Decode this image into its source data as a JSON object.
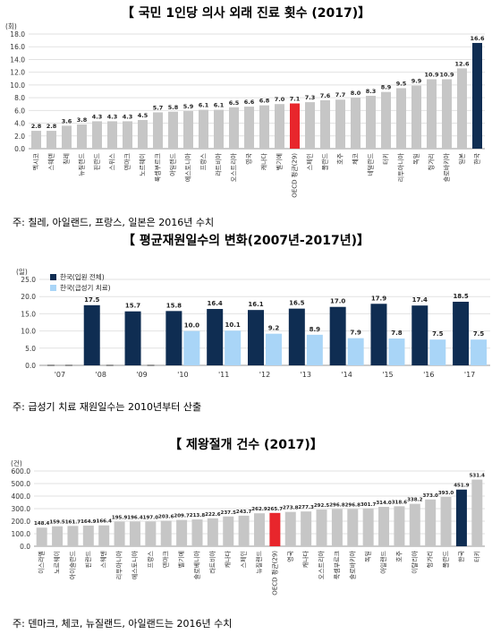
{
  "chart_data": [
    {
      "type": "bar",
      "title": "【 국민 1인당 의사 외래 진료 횟수 (2017)】",
      "ylabel": "(회)",
      "ylim": [
        0,
        18
      ],
      "yticks": [
        "0.0",
        "2.0",
        "4.0",
        "6.0",
        "8.0",
        "10.0",
        "12.0",
        "14.0",
        "16.0",
        "18.0"
      ],
      "categories": [
        "멕시코",
        "스웨덴",
        "칠레",
        "뉴질랜드",
        "핀란드",
        "스위스",
        "덴마크",
        "노르웨이",
        "룩셈부르크",
        "아일랜드",
        "에스토니아",
        "프랑스",
        "라트비아",
        "오스트리아",
        "영국",
        "캐나다",
        "벨기에",
        "OECD 평균(29)",
        "스페인",
        "폴란드",
        "호주",
        "체코",
        "네덜란드",
        "터키",
        "리투아니아",
        "독일",
        "헝가리",
        "슬로바키아",
        "일본",
        "한국"
      ],
      "values": [
        2.8,
        2.8,
        3.6,
        3.8,
        4.3,
        4.3,
        4.3,
        4.5,
        5.7,
        5.8,
        5.9,
        6.1,
        6.1,
        6.5,
        6.6,
        6.8,
        7.0,
        7.1,
        7.3,
        7.6,
        7.7,
        8.0,
        8.3,
        8.9,
        9.5,
        9.9,
        10.9,
        10.9,
        12.6,
        16.6
      ],
      "value_labels": [
        "2.8",
        "2.8",
        "3.6",
        "3.8",
        "4.3",
        "4.3",
        "4.3",
        "4.5",
        "5.7",
        "5.8",
        "5.9",
        "6.1",
        "6.1",
        "6.5",
        "6.6",
        "6.8",
        "7.0",
        "7.1",
        "7.3",
        "7.6",
        "7.7",
        "8.0",
        "8.3",
        "8.9",
        "9.5",
        "9.9",
        "10.9",
        "10.9",
        "12.6",
        "16.6"
      ],
      "highlight": {
        "OECD 평균(29)": "#e8262c",
        "한국": "#0f2d52"
      },
      "bar_color": "#c6c6c6",
      "note": "주: 칠레, 아일랜드, 프랑스, 일본은 2016년 수치"
    },
    {
      "type": "bar",
      "title": "【 평균재원일수의 변화(2007년-2017년)】",
      "ylabel": "(일)",
      "ylim": [
        0,
        25
      ],
      "yticks": [
        "0.0",
        "5.0",
        "10.0",
        "15.0",
        "20.0",
        "25.0"
      ],
      "categories": [
        "'07",
        "'08",
        "'09",
        "'10",
        "'11",
        "'12",
        "'13",
        "'14",
        "'15",
        "'16",
        "'17"
      ],
      "series": [
        {
          "name": "한국(입원 전체)",
          "color": "#0f2d52",
          "values": [
            null,
            17.5,
            15.7,
            15.8,
            16.4,
            16.1,
            16.5,
            17.0,
            17.9,
            17.4,
            18.5
          ],
          "labels": [
            "",
            "17.5",
            "15.7",
            "15.8",
            "16.4",
            "16.1",
            "16.5",
            "17.0",
            "17.9",
            "17.4",
            "18.5"
          ]
        },
        {
          "name": "한국(급성기 치료)",
          "color": "#a9d5f7",
          "values": [
            null,
            null,
            null,
            10.0,
            10.1,
            9.2,
            8.9,
            7.9,
            7.8,
            7.5,
            7.5
          ],
          "labels": [
            "",
            "",
            "",
            "10.0",
            "10.1",
            "9.2",
            "8.9",
            "7.9",
            "7.8",
            "7.5",
            "7.5"
          ]
        }
      ],
      "legend": "top-left",
      "note": "주: 급성기 치료 재원일수는 2010년부터 산출"
    },
    {
      "type": "bar",
      "title": "【 제왕절개 건수 (2017)】",
      "ylabel": "(건)",
      "ylim": [
        0,
        600
      ],
      "yticks": [
        "0.0",
        "100.0",
        "200.0",
        "300.0",
        "400.0",
        "500.0",
        "600.0"
      ],
      "categories": [
        "이스라엘",
        "노르웨이",
        "아이슬란드",
        "핀란드",
        "스웨덴",
        "리투아니아",
        "에스토니아",
        "프랑스",
        "덴마크",
        "벨기에",
        "슬로베니아",
        "라트비아",
        "캐나다",
        "스페인",
        "뉴질랜드",
        "OECD 평균(29)",
        "영국",
        "캐나다",
        "오스트리아",
        "룩셈부르크",
        "슬로바키아",
        "독일",
        "아일랜드",
        "호주",
        "이탈리아",
        "헝가리",
        "폴란드",
        "한국",
        "터키"
      ],
      "values": [
        148.4,
        159.5,
        161.7,
        164.9,
        166.4,
        195.9,
        196.4,
        197.0,
        203.6,
        209.7,
        213.8,
        222.6,
        237.5,
        243.7,
        262.9,
        265.7,
        273.8,
        277.3,
        292.5,
        296.8,
        296.8,
        301.7,
        314.0,
        318.6,
        338.2,
        373.0,
        393.0,
        451.9,
        531.4
      ],
      "value_labels": [
        "148.4",
        "159.5",
        "161.7",
        "164.9",
        "166.4",
        "195.9",
        "196.4",
        "197.0",
        "203.6",
        "209.7",
        "213.8",
        "222.6",
        "237.5",
        "243.7",
        "262.9",
        "265.7",
        "273.8",
        "277.3",
        "292.5",
        "296.8",
        "296.8",
        "301.7",
        "314.0",
        "318.6",
        "338.2",
        "373.0",
        "393.0",
        "451.9",
        "531.4"
      ],
      "highlight": {
        "OECD 평균(29)": "#e8262c",
        "한국": "#0f2d52"
      },
      "bar_color": "#c6c6c6",
      "note": "주: 덴마크, 체코, 뉴질랜드, 아일랜드는 2016년 수치"
    }
  ]
}
